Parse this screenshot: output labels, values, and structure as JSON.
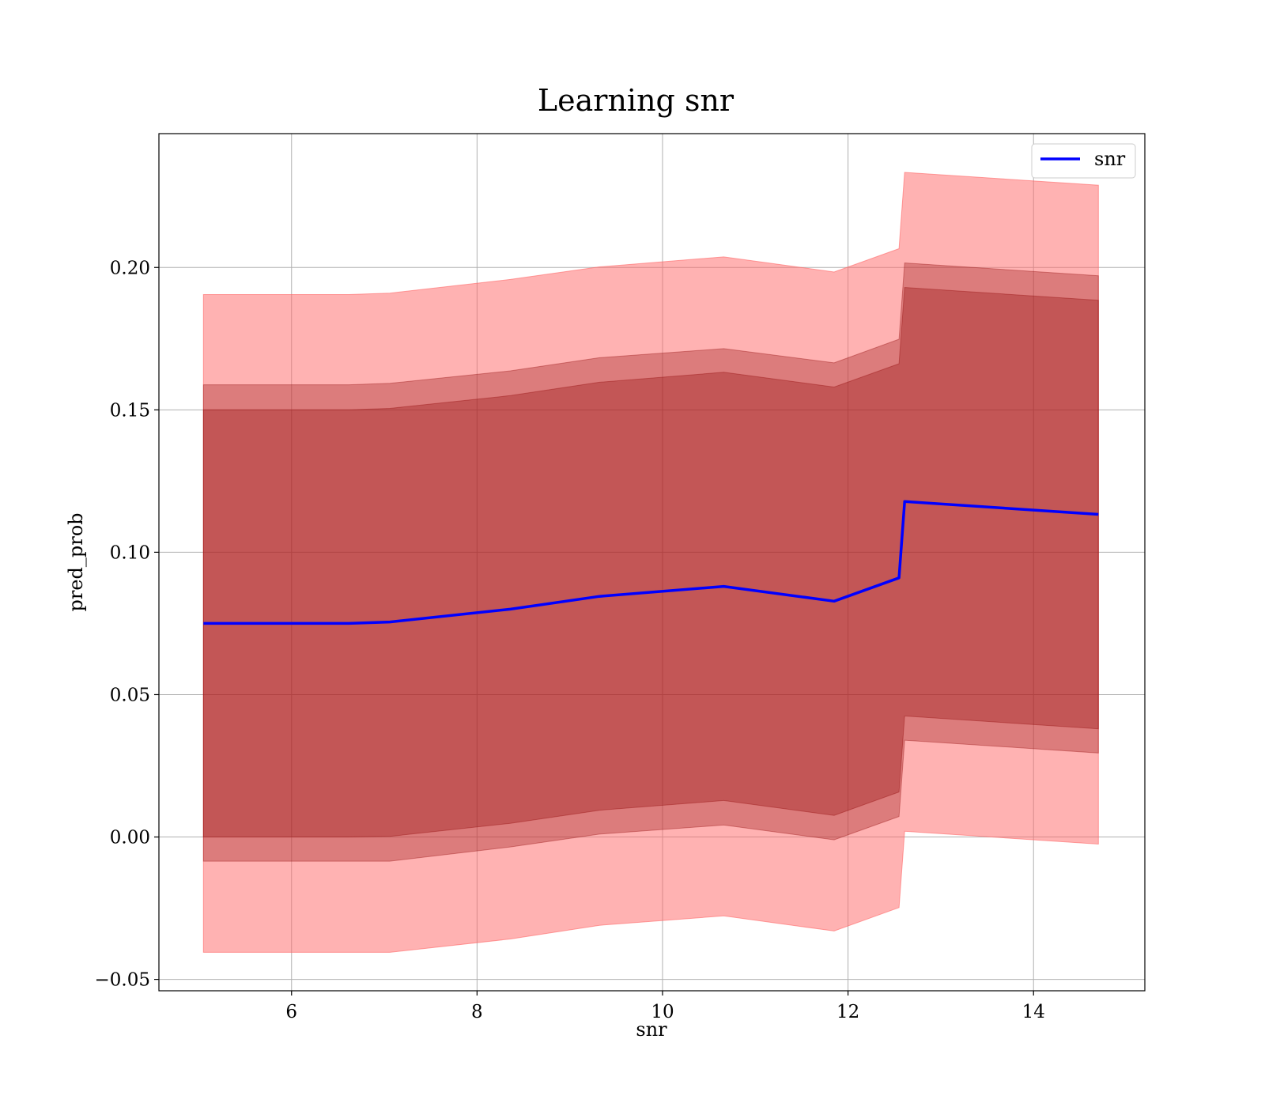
{
  "chart_data": {
    "type": "line",
    "title": "Learning snr",
    "xlabel": "snr",
    "ylabel": "pred_prob",
    "xlim": [
      4.57,
      15.2
    ],
    "ylim": [
      -0.054,
      0.247
    ],
    "xticks": [
      6,
      8,
      10,
      12,
      14
    ],
    "yticks": [
      -0.05,
      0.0,
      0.05,
      0.1,
      0.15,
      0.2
    ],
    "xtick_labels": [
      "6",
      "8",
      "10",
      "12",
      "14"
    ],
    "ytick_labels": [
      "−0.05",
      "0.00",
      "0.05",
      "0.10",
      "0.15",
      "0.20"
    ],
    "grid": true,
    "legend_position": "top-right",
    "colors": {
      "line": "#0000ff",
      "outer_band": "#ff6666",
      "inner_band": "#8b0000"
    },
    "series": [
      {
        "name": "snr",
        "x": [
          5.05,
          6.62,
          7.06,
          8.36,
          9.32,
          10.66,
          11.85,
          12.55,
          12.61,
          14.7
        ],
        "y": [
          0.075,
          0.075,
          0.0755,
          0.08,
          0.0845,
          0.088,
          0.0828,
          0.091,
          0.1178,
          0.1133
        ],
        "bands": [
          {
            "lower": [
              -0.0405,
              -0.0405,
              -0.0405,
              -0.0358,
              -0.031,
              -0.0277,
              -0.033,
              -0.0248,
              0.002,
              -0.0025
            ],
            "upper": [
              0.1905,
              0.1905,
              0.191,
              0.1958,
              0.2002,
              0.2037,
              0.1984,
              0.2066,
              0.2334,
              0.2289
            ]
          },
          {
            "lower": [
              -0.0085,
              -0.0085,
              -0.0085,
              -0.0035,
              0.001,
              0.0042,
              -0.001,
              0.0072,
              0.034,
              0.0295
            ],
            "upper": [
              0.1588,
              0.1588,
              0.1593,
              0.1637,
              0.1683,
              0.1715,
              0.1665,
              0.1748,
              0.2016,
              0.1971
            ]
          },
          {
            "lower": [
              0.0,
              0.0,
              0.0002,
              0.0048,
              0.0094,
              0.0128,
              0.0076,
              0.0158,
              0.0425,
              0.038
            ],
            "upper": [
              0.15,
              0.15,
              0.1505,
              0.155,
              0.1597,
              0.1632,
              0.158,
              0.1662,
              0.193,
              0.1885
            ]
          }
        ]
      }
    ]
  }
}
